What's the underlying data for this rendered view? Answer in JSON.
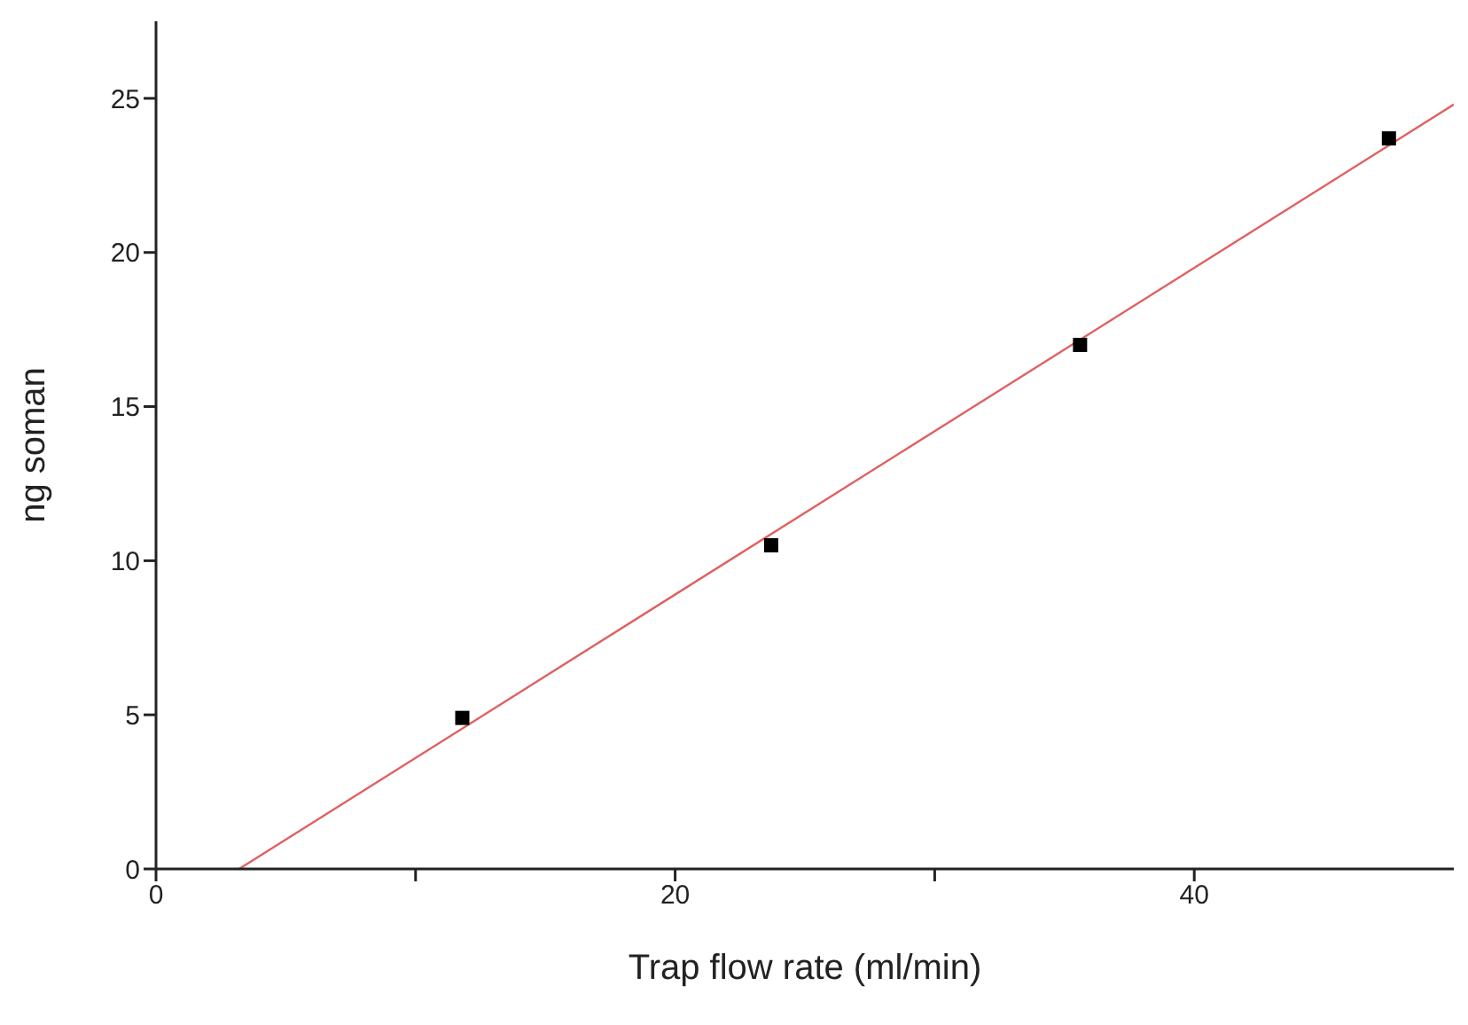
{
  "chart_data": {
    "type": "scatter",
    "xlabel": "Trap flow rate (ml/min)",
    "ylabel": "ng soman",
    "xlim": [
      0,
      50
    ],
    "ylim": [
      0,
      27.5
    ],
    "xticks": [
      0,
      {
        "value": 10,
        "label": null
      },
      20,
      {
        "value": 30,
        "label": null
      },
      40
    ],
    "yticks": [
      0,
      5,
      10,
      15,
      20,
      25
    ],
    "grid": false,
    "legend": false,
    "marker": "square",
    "series": [
      {
        "color": "#000000",
        "x": [
          11.8,
          23.7,
          35.6,
          47.5
        ],
        "values": [
          4.9,
          10.5,
          17.0,
          23.7
        ]
      },
      {
        "type": "line",
        "color": "#e06060",
        "marker": "none",
        "x": [
          3.2,
          50
        ],
        "values": [
          0,
          24.8
        ]
      }
    ]
  }
}
